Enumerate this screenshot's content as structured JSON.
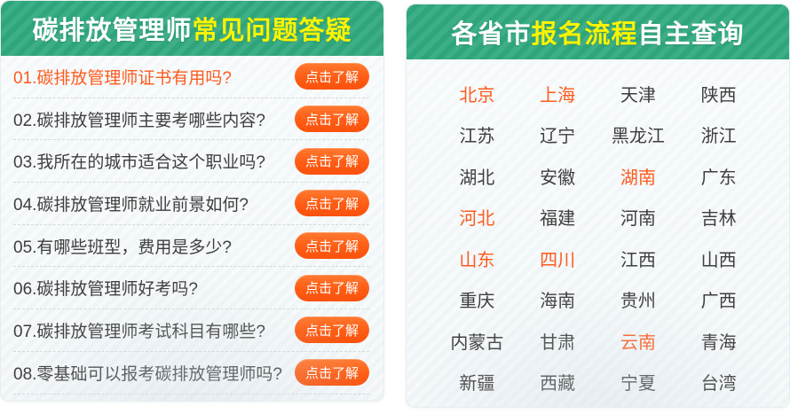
{
  "colors": {
    "header_green": "#2fa87d",
    "header_yellow": "#fbf400",
    "accent_orange": "#fe5a1d",
    "button_orange": "#fe5c14",
    "text_dark": "#3e3e3e",
    "panel_bg": "#f1f6f8"
  },
  "left_panel": {
    "title_white": "碳排放管理师",
    "title_yellow": "常见问题答疑",
    "button_label": "点击了解",
    "questions": [
      {
        "text": "01.碳排放管理师证书有用吗?",
        "highlight": true
      },
      {
        "text": "02.碳排放管理师主要考哪些内容?",
        "highlight": false
      },
      {
        "text": "03.我所在的城市适合这个职业吗?",
        "highlight": false
      },
      {
        "text": "04.碳排放管理师就业前景如何?",
        "highlight": false
      },
      {
        "text": "05.有哪些班型，费用是多少?",
        "highlight": false
      },
      {
        "text": "06.碳排放管理师好考吗?",
        "highlight": false
      },
      {
        "text": "07.碳排放管理师考试科目有哪些?",
        "highlight": false
      },
      {
        "text": "08.零基础可以报考碳排放管理师吗?",
        "highlight": false
      }
    ]
  },
  "right_panel": {
    "title_white_1": "各省市",
    "title_yellow": "报名流程",
    "title_white_2": "自主查询",
    "provinces": [
      {
        "name": "北京",
        "highlight": true
      },
      {
        "name": "上海",
        "highlight": true
      },
      {
        "name": "天津",
        "highlight": false
      },
      {
        "name": "陕西",
        "highlight": false
      },
      {
        "name": "江苏",
        "highlight": false
      },
      {
        "name": "辽宁",
        "highlight": false
      },
      {
        "name": "黑龙江",
        "highlight": false
      },
      {
        "name": "浙江",
        "highlight": false
      },
      {
        "name": "湖北",
        "highlight": false
      },
      {
        "name": "安徽",
        "highlight": false
      },
      {
        "name": "湖南",
        "highlight": true
      },
      {
        "name": "广东",
        "highlight": false
      },
      {
        "name": "河北",
        "highlight": true
      },
      {
        "name": "福建",
        "highlight": false
      },
      {
        "name": "河南",
        "highlight": false
      },
      {
        "name": "吉林",
        "highlight": false
      },
      {
        "name": "山东",
        "highlight": true
      },
      {
        "name": "四川",
        "highlight": true
      },
      {
        "name": "江西",
        "highlight": false
      },
      {
        "name": "山西",
        "highlight": false
      },
      {
        "name": "重庆",
        "highlight": false
      },
      {
        "name": "海南",
        "highlight": false
      },
      {
        "name": "贵州",
        "highlight": false
      },
      {
        "name": "广西",
        "highlight": false
      },
      {
        "name": "内蒙古",
        "highlight": false
      },
      {
        "name": "甘肃",
        "highlight": false
      },
      {
        "name": "云南",
        "highlight": true
      },
      {
        "name": "青海",
        "highlight": false
      },
      {
        "name": "新疆",
        "highlight": false
      },
      {
        "name": "西藏",
        "highlight": false
      },
      {
        "name": "宁夏",
        "highlight": false
      },
      {
        "name": "台湾",
        "highlight": false
      }
    ]
  }
}
